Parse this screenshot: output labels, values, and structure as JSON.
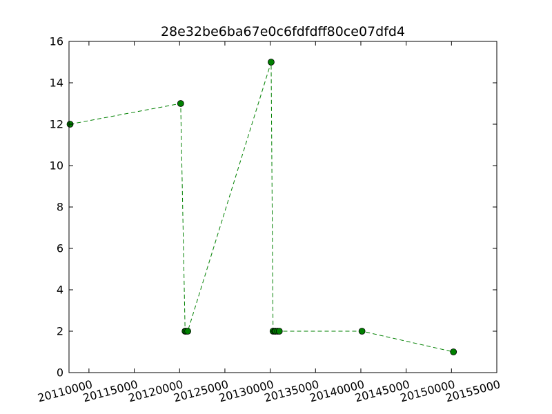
{
  "chart_data": {
    "type": "line",
    "title": "28e32be6ba67e0c6fdfdff80ce07dfd4",
    "xlabel": "",
    "ylabel": "",
    "xlim": [
      20107800,
      20155000
    ],
    "ylim": [
      0,
      16
    ],
    "x_ticks": [
      20110000,
      20115000,
      20120000,
      20125000,
      20130000,
      20135000,
      20140000,
      20145000,
      20150000,
      20155000
    ],
    "y_ticks": [
      0,
      2,
      4,
      6,
      8,
      10,
      12,
      14,
      16
    ],
    "x_tick_rotation_deg": 15,
    "grid": false,
    "series": [
      {
        "color": "#008000",
        "line_style": "dashed",
        "marker": "circle",
        "x": [
          20107918,
          20120120,
          20120608,
          20120720,
          20120901,
          20130101,
          20130315,
          20130501,
          20130601,
          20130815,
          20131001,
          20140127,
          20150220
        ],
        "y": [
          12,
          13,
          2,
          2,
          2,
          15,
          2,
          2,
          2,
          2,
          2,
          2,
          1
        ]
      }
    ]
  }
}
